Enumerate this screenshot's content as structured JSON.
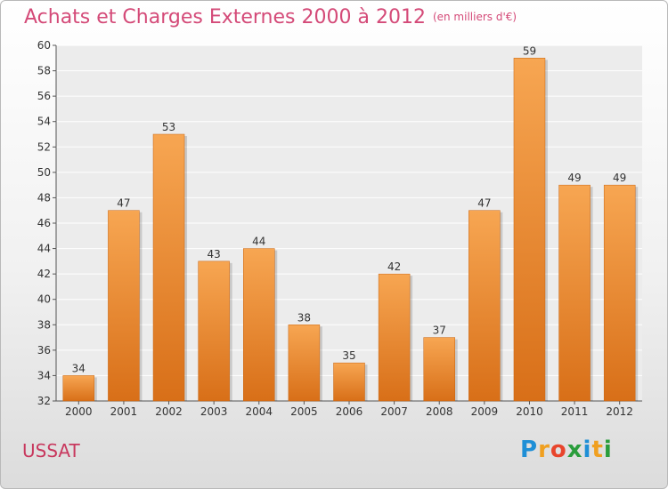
{
  "chart_data": {
    "type": "bar",
    "title": "Achats et Charges Externes 2000 à 2012",
    "subtitle": "(en milliers d'€)",
    "categories": [
      "2000",
      "2001",
      "2002",
      "2003",
      "2004",
      "2005",
      "2006",
      "2007",
      "2008",
      "2009",
      "2010",
      "2011",
      "2012"
    ],
    "values": [
      34,
      47,
      53,
      43,
      44,
      38,
      35,
      42,
      37,
      47,
      59,
      49,
      49
    ],
    "ylim": [
      32,
      60
    ],
    "yticks": [
      32,
      34,
      36,
      38,
      40,
      42,
      44,
      46,
      48,
      50,
      52,
      54,
      56,
      58,
      60
    ],
    "grid": true,
    "bar_color_top": "#f7a652",
    "bar_color_bottom": "#d86f18"
  },
  "commune": "USSAT",
  "logo": {
    "letters": [
      "P",
      "r",
      "o",
      "x",
      "i",
      "t",
      "i"
    ],
    "colors": [
      "#1f8fd6",
      "#f0a020",
      "#e8452c",
      "#2a9d3c",
      "#1f8fd6",
      "#f0a020",
      "#2a9d3c"
    ]
  }
}
